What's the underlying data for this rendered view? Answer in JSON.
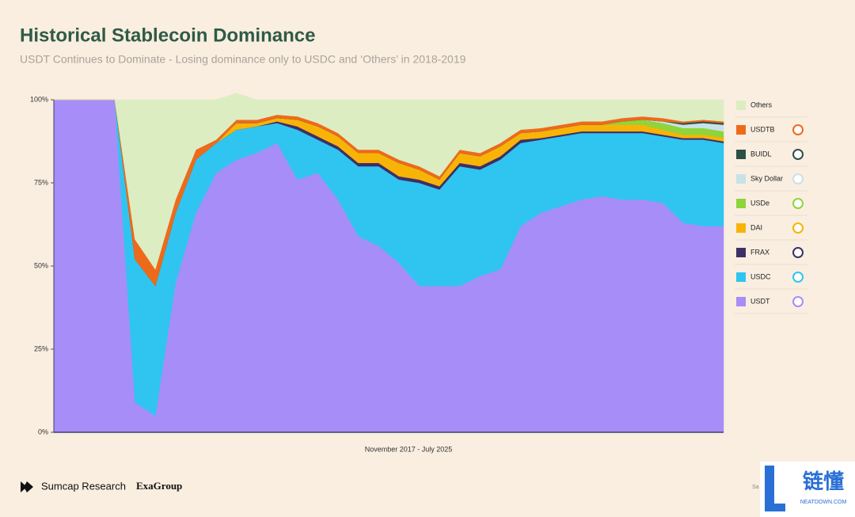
{
  "chart_data": {
    "type": "stacked-area",
    "title": "Historical Stablecoin Dominance",
    "subtitle": "USDT Continues to Dominate - Losing dominance only to USDC and ‘Others’ in 2018-2019",
    "x_label": "November 2017 - July 2025",
    "categories": [
      null,
      null,
      null,
      null,
      null,
      null,
      null,
      null,
      null,
      null,
      null,
      null,
      null,
      null,
      null,
      null,
      null,
      null,
      null,
      null,
      null,
      null,
      null,
      null,
      null,
      null,
      null,
      null,
      null,
      null,
      null,
      null,
      null,
      null
    ],
    "ylim": [
      0,
      100
    ],
    "yticks": [
      {
        "value": 0,
        "label": "0%"
      },
      {
        "value": 25,
        "label": "25%"
      },
      {
        "value": 50,
        "label": "50%"
      },
      {
        "value": 75,
        "label": "75%"
      },
      {
        "value": 100,
        "label": "100%"
      }
    ],
    "series": [
      {
        "name": "USDT",
        "color": "#a78df8",
        "values": [
          100,
          100,
          100,
          100,
          9,
          5,
          45,
          66,
          78,
          82,
          84,
          87,
          76,
          78,
          70,
          59,
          56,
          51,
          44,
          44,
          44,
          47,
          49,
          62,
          66,
          68,
          70,
          71,
          70,
          70,
          69,
          63,
          62,
          62
        ]
      },
      {
        "name": "USDC",
        "color": "#2fc5f0",
        "values": [
          0,
          0,
          0,
          0,
          43,
          39,
          21,
          16,
          9,
          9,
          8,
          6,
          15,
          10,
          15,
          21,
          24,
          25,
          31,
          29,
          36,
          32,
          33,
          25,
          22,
          21,
          20,
          19,
          20,
          20,
          20,
          25,
          26,
          25
        ]
      },
      {
        "name": "FRAX",
        "color": "#3d2f66",
        "values": [
          0,
          0,
          0,
          0,
          0,
          0,
          0,
          0,
          0,
          0,
          0,
          0.5,
          1,
          1,
          1,
          1,
          1,
          1,
          1,
          1,
          1,
          1,
          1,
          1,
          0.5,
          0.5,
          0.5,
          0.5,
          0.5,
          0.5,
          0.5,
          0.5,
          0.5,
          0.5
        ]
      },
      {
        "name": "DAI",
        "color": "#f8b406",
        "values": [
          0,
          0,
          0,
          0,
          0,
          0,
          0,
          0,
          0,
          2,
          1,
          1,
          2,
          3,
          3,
          3,
          3,
          4,
          3,
          2,
          3,
          3,
          3,
          2,
          2,
          2,
          2,
          2,
          2,
          2,
          1.5,
          1,
          1,
          1
        ]
      },
      {
        "name": "USDe",
        "color": "#8fd43b",
        "values": [
          0,
          0,
          0,
          0,
          0,
          0,
          0,
          0,
          0,
          0,
          0,
          0,
          0,
          0,
          0,
          0,
          0,
          0,
          0,
          0,
          0,
          0,
          0,
          0,
          0,
          0,
          0,
          0,
          1,
          1.5,
          2,
          2,
          2,
          2
        ]
      },
      {
        "name": "Sky Dollar",
        "color": "#c8e2e8",
        "values": [
          0,
          0,
          0,
          0,
          0,
          0,
          0,
          0,
          0,
          0,
          0,
          0,
          0,
          0,
          0,
          0,
          0,
          0,
          0,
          0,
          0,
          0,
          0,
          0,
          0,
          0,
          0,
          0,
          0,
          0,
          0.5,
          1,
          1.5,
          2
        ]
      },
      {
        "name": "BUIDL",
        "color": "#2e4f44",
        "values": [
          0,
          0,
          0,
          0,
          0,
          0,
          0,
          0,
          0,
          0,
          0,
          0,
          0,
          0,
          0,
          0,
          0,
          0,
          0,
          0,
          0,
          0,
          0,
          0,
          0,
          0,
          0,
          0,
          0,
          0,
          0,
          0.5,
          0.5,
          0.5
        ]
      },
      {
        "name": "USDTB",
        "color": "#ee6a1b",
        "values": [
          0,
          0,
          0,
          0,
          6,
          5,
          4,
          3,
          1,
          1,
          1,
          1,
          1,
          1,
          1,
          1,
          1,
          1,
          1,
          1,
          1,
          1,
          1,
          1,
          1,
          1,
          1,
          1,
          1,
          1,
          1,
          0.5,
          0.5,
          0.5
        ]
      },
      {
        "name": "Others",
        "color": "#dcedc2",
        "values": [
          0,
          0,
          0,
          0,
          42,
          51,
          30,
          15,
          12,
          8,
          6,
          4.5,
          5,
          7,
          10,
          15,
          15,
          18,
          20,
          23,
          15,
          16,
          13,
          9,
          8.5,
          7.5,
          6.5,
          6.5,
          5.5,
          5,
          5.5,
          6.5,
          6,
          6.5
        ]
      }
    ]
  },
  "footer": {
    "left": "Sumcap Research",
    "right": "ExaGroup",
    "source": "Sa",
    "watermark": "链懂",
    "watermark_url": "NEATDOWN.COM"
  }
}
